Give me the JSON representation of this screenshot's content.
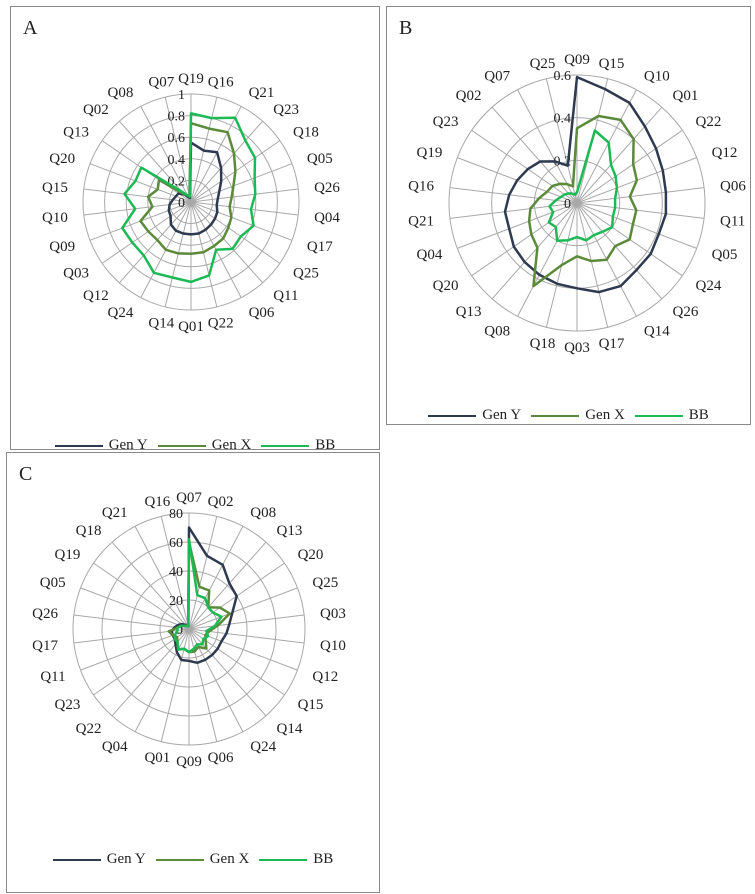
{
  "colors": {
    "gen_y": "#2e3a4f",
    "gen_x": "#5a8a3a",
    "bb": "#1db954"
  },
  "chart_data": [
    {
      "type": "radar",
      "panel": "A",
      "categories": [
        "Q19",
        "Q16",
        "Q21",
        "Q23",
        "Q18",
        "Q05",
        "Q26",
        "Q04",
        "Q17",
        "Q25",
        "Q11",
        "Q06",
        "Q22",
        "Q01",
        "Q14",
        "Q24",
        "Q12",
        "Q03",
        "Q09",
        "Q10",
        "Q15",
        "Q20",
        "Q13",
        "Q02",
        "Q08",
        "Q07"
      ],
      "rmax": 1,
      "ticks": [
        0,
        0.2,
        0.4,
        0.6,
        0.8,
        1
      ],
      "tick_labels": [
        "0",
        "0.2",
        "0.4",
        "0.6",
        "0.8",
        "1"
      ],
      "series": [
        {
          "name": "Gen Y",
          "color_key": "gen_y",
          "values": [
            0.55,
            0.49,
            0.52,
            0.42,
            0.34,
            0.28,
            0.25,
            0.24,
            0.26,
            0.27,
            0.28,
            0.29,
            0.3,
            0.3,
            0.3,
            0.3,
            0.28,
            0.23,
            0.22,
            0.2,
            0.17,
            0.15,
            0.14,
            0.09,
            0.05,
            0.04
          ]
        },
        {
          "name": "Gen X",
          "color_key": "gen_x",
          "values": [
            0.73,
            0.7,
            0.73,
            0.6,
            0.5,
            0.42,
            0.38,
            0.36,
            0.4,
            0.42,
            0.45,
            0.46,
            0.48,
            0.48,
            0.49,
            0.5,
            0.47,
            0.48,
            0.5,
            0.36,
            0.4,
            0.33,
            0.36,
            0.1,
            0.07,
            0.06
          ]
        },
        {
          "name": "BB",
          "color_key": "bb",
          "values": [
            0.82,
            0.8,
            0.88,
            0.76,
            0.72,
            0.63,
            0.6,
            0.56,
            0.62,
            0.56,
            0.58,
            0.5,
            0.7,
            0.74,
            0.72,
            0.74,
            0.66,
            0.66,
            0.68,
            0.52,
            0.62,
            0.55,
            0.56,
            0.13,
            0.07,
            0.05
          ]
        }
      ],
      "legend": "bottom"
    },
    {
      "type": "radar",
      "panel": "B",
      "categories": [
        "Q09",
        "Q15",
        "Q10",
        "Q01",
        "Q22",
        "Q12",
        "Q06",
        "Q11",
        "Q05",
        "Q24",
        "Q26",
        "Q14",
        "Q17",
        "Q03",
        "Q18",
        "Q08",
        "Q13",
        "Q20",
        "Q04",
        "Q21",
        "Q16",
        "Q19",
        "Q23",
        "Q02",
        "Q07",
        "Q25"
      ],
      "rmax": 0.6,
      "ticks": [
        0,
        0.2,
        0.4,
        0.6
      ],
      "tick_labels": [
        "0",
        "0.2",
        "0.4",
        "0.6"
      ],
      "series": [
        {
          "name": "Gen Y",
          "color_key": "gen_y",
          "values": [
            0.59,
            0.55,
            0.53,
            0.48,
            0.45,
            0.43,
            0.42,
            0.42,
            0.41,
            0.42,
            0.42,
            0.44,
            0.43,
            0.4,
            0.39,
            0.38,
            0.37,
            0.36,
            0.34,
            0.34,
            0.32,
            0.3,
            0.28,
            0.26,
            0.22,
            0.18
          ]
        },
        {
          "name": "Gen X",
          "color_key": "gen_x",
          "values": [
            0.35,
            0.42,
            0.44,
            0.4,
            0.32,
            0.3,
            0.25,
            0.28,
            0.28,
            0.3,
            0.27,
            0.3,
            0.28,
            0.25,
            0.3,
            0.44,
            0.28,
            0.26,
            0.24,
            0.22,
            0.18,
            0.15,
            0.14,
            0.12,
            0.1,
            0.08
          ]
        },
        {
          "name": "BB",
          "color_key": "bb",
          "values": [
            0.05,
            0.35,
            0.32,
            0.24,
            0.22,
            0.2,
            0.18,
            0.18,
            0.18,
            0.2,
            0.18,
            0.17,
            0.18,
            0.16,
            0.18,
            0.2,
            0.15,
            0.16,
            0.12,
            0.13,
            0.1,
            0.08,
            0.07,
            0.06,
            0.05,
            0.04
          ]
        }
      ],
      "legend": "bottom"
    },
    {
      "type": "radar",
      "panel": "C",
      "categories": [
        "Q07",
        "Q02",
        "Q08",
        "Q13",
        "Q20",
        "Q25",
        "Q03",
        "Q10",
        "Q12",
        "Q15",
        "Q14",
        "Q24",
        "Q06",
        "Q09",
        "Q01",
        "Q04",
        "Q22",
        "Q23",
        "Q11",
        "Q17",
        "Q26",
        "Q05",
        "Q19",
        "Q18",
        "Q21",
        "Q16"
      ],
      "rmax": 80,
      "ticks": [
        0,
        20,
        40,
        60,
        80
      ],
      "tick_labels": [
        "0",
        "20",
        "40",
        "60",
        "80"
      ],
      "series": [
        {
          "name": "Gen Y",
          "color_key": "gen_y",
          "values": [
            70,
            52,
            50,
            42,
            40,
            32,
            28,
            26,
            24,
            24,
            24,
            24,
            24,
            22,
            22,
            18,
            14,
            12,
            12,
            12,
            10,
            8,
            6,
            4,
            3,
            2
          ]
        },
        {
          "name": "Gen X",
          "color_key": "gen_x",
          "values": [
            60,
            30,
            30,
            20,
            26,
            30,
            20,
            14,
            12,
            14,
            18,
            14,
            16,
            16,
            14,
            16,
            12,
            10,
            12,
            14,
            8,
            6,
            4,
            3,
            2,
            2
          ]
        },
        {
          "name": "BB",
          "color_key": "bb",
          "values": [
            62,
            24,
            24,
            20,
            20,
            24,
            18,
            12,
            14,
            12,
            14,
            12,
            14,
            16,
            14,
            16,
            12,
            12,
            10,
            8,
            8,
            6,
            4,
            3,
            2,
            2
          ]
        }
      ],
      "legend": "bottom"
    }
  ]
}
